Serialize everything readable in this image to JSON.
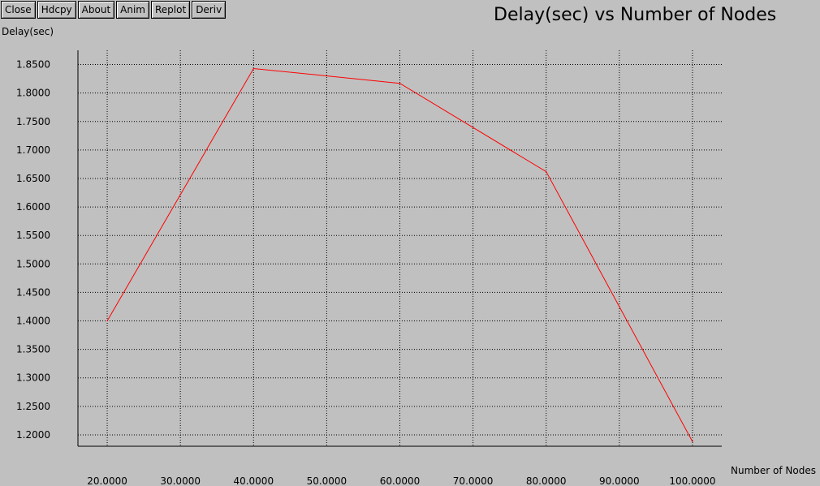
{
  "toolbar": {
    "buttons": [
      {
        "id": "close",
        "label": "Close"
      },
      {
        "id": "hdcpy",
        "label": "Hdcpy"
      },
      {
        "id": "about",
        "label": "About"
      },
      {
        "id": "anim",
        "label": "Anim"
      },
      {
        "id": "replot",
        "label": "Replot"
      },
      {
        "id": "deriv",
        "label": "Deriv"
      }
    ]
  },
  "chart_data": {
    "type": "line",
    "title": "Delay(sec) vs Number of Nodes",
    "xlabel": "Number of Nodes",
    "ylabel": "Delay(sec)",
    "x": [
      20,
      40,
      60,
      80,
      100
    ],
    "series": [
      {
        "values": [
          1.4,
          1.843,
          1.817,
          1.662,
          1.188
        ],
        "color": "#ff0000"
      }
    ],
    "xticks": [
      "20.0000",
      "30.0000",
      "40.0000",
      "50.0000",
      "60.0000",
      "70.0000",
      "80.0000",
      "90.0000",
      "100.0000"
    ],
    "yticks": [
      "1.2000",
      "1.2500",
      "1.3000",
      "1.3500",
      "1.4000",
      "1.4500",
      "1.5000",
      "1.5500",
      "1.6000",
      "1.6500",
      "1.7000",
      "1.7500",
      "1.8000",
      "1.8500"
    ],
    "xlim": [
      16,
      104
    ],
    "ylim": [
      1.18,
      1.875
    ],
    "grid": true,
    "colors": {
      "background": "#c0c0c0",
      "grid": "#000000",
      "line": "#ff0000"
    }
  }
}
